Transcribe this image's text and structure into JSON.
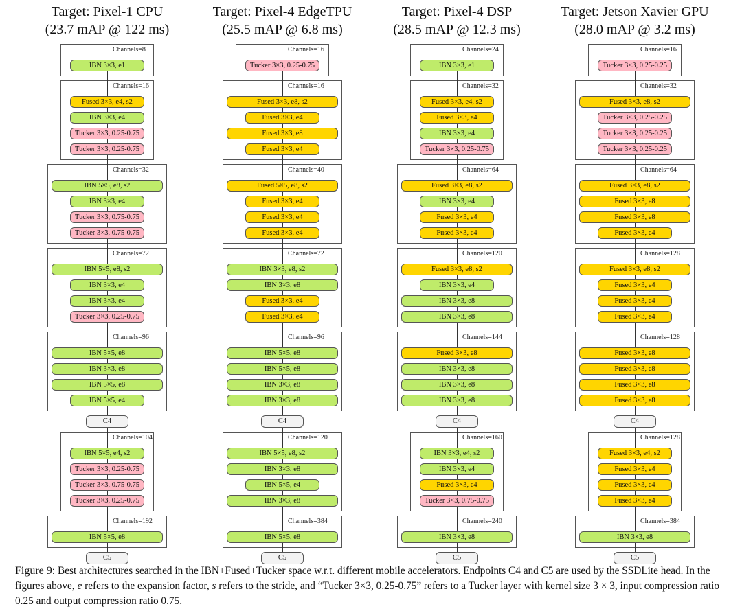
{
  "columns": [
    {
      "title": "Target: Pixel-1 CPU",
      "subtitle": "(23.7 mAP @ 122 ms)",
      "stages": [
        {
          "channels": "Channels=8",
          "blocks": [
            "IBN 3×3, e1"
          ]
        },
        {
          "channels": "Channels=16",
          "blocks": [
            "Fused 3×3, e4, s2",
            "IBN 3×3, e4",
            "Tucker 3×3, 0.25-0.75",
            "Tucker 3×3, 0.25-0.75"
          ]
        },
        {
          "channels": "Channels=32",
          "blocks": [
            "IBN 5×5, e8, s2",
            "IBN 3×3, e4",
            "Tucker 3×3, 0.75-0.75",
            "Tucker 3×3, 0.75-0.75"
          ]
        },
        {
          "channels": "Channels=72",
          "blocks": [
            "IBN 5×5, e8, s2",
            "IBN 3×3, e4",
            "IBN 3×3, e4",
            "Tucker 3×3, 0.25-0.75"
          ]
        },
        {
          "channels": "Channels=96",
          "blocks": [
            "IBN 5×5, e8",
            "IBN 3×3, e8",
            "IBN 5×5, e8",
            "IBN 5×5, e4"
          ]
        },
        {
          "endpoint": "C4"
        },
        {
          "channels": "Channels=104",
          "blocks": [
            "IBN 5×5, e4, s2",
            "Tucker 3×3, 0.25-0.75",
            "Tucker 3×3, 0.75-0.75",
            "Tucker 3×3, 0.25-0.75"
          ]
        },
        {
          "channels": "Channels=192",
          "blocks": [
            "IBN 5×5, e8"
          ]
        },
        {
          "endpoint": "C5"
        }
      ]
    },
    {
      "title": "Target: Pixel-4 EdgeTPU",
      "subtitle": "(25.5 mAP @ 6.8 ms)",
      "stages": [
        {
          "channels": "Channels=16",
          "blocks": [
            "Tucker 3×3, 0.25-0.75"
          ]
        },
        {
          "channels": "Channels=16",
          "blocks": [
            "Fused 3×3, e8, s2",
            "Fused 3×3, e4",
            "Fused 3×3, e8",
            "Fused 3×3, e4"
          ]
        },
        {
          "channels": "Channels=40",
          "blocks": [
            "Fused 5×5, e8, s2",
            "Fused 3×3, e4",
            "Fused 3×3, e4",
            "Fused 3×3, e4"
          ]
        },
        {
          "channels": "Channels=72",
          "blocks": [
            "IBN 3×3, e8, s2",
            "IBN 3×3, e8",
            "Fused 3×3, e4",
            "Fused 3×3, e4"
          ]
        },
        {
          "channels": "Channels=96",
          "blocks": [
            "IBN 5×5, e8",
            "IBN 5×5, e8",
            "IBN 3×3, e8",
            "IBN 3×3, e8"
          ]
        },
        {
          "endpoint": "C4"
        },
        {
          "channels": "Channels=120",
          "blocks": [
            "IBN 5×5, e8, s2",
            "IBN 3×3, e8",
            "IBN 5×5, e4",
            "IBN 3×3, e8"
          ]
        },
        {
          "channels": "Channels=384",
          "blocks": [
            "IBN 5×5, e8"
          ]
        },
        {
          "endpoint": "C5"
        }
      ]
    },
    {
      "title": "Target: Pixel-4 DSP",
      "subtitle": "(28.5 mAP @ 12.3 ms)",
      "stages": [
        {
          "channels": "Channels=24",
          "blocks": [
            "IBN 3×3, e1"
          ]
        },
        {
          "channels": "Channels=32",
          "blocks": [
            "Fused 3×3, e4, s2",
            "Fused 3×3, e4",
            "IBN 3×3, e4",
            "Tucker 3×3, 0.25-0.75"
          ]
        },
        {
          "channels": "Channels=64",
          "blocks": [
            "Fused 3×3, e8, s2",
            "IBN 3×3, e4",
            "Fused 3×3, e4",
            "Fused 3×3, e4"
          ]
        },
        {
          "channels": "Channels=120",
          "blocks": [
            "Fused 3×3, e8, s2",
            "IBN 3×3, e4",
            "IBN 3×3, e8",
            "IBN 3×3, e8"
          ]
        },
        {
          "channels": "Channels=144",
          "blocks": [
            "Fused 3×3, e8",
            "IBN 3×3, e8",
            "IBN 3×3, e8",
            "IBN 3×3, e8"
          ]
        },
        {
          "endpoint": "C4"
        },
        {
          "channels": "Channels=160",
          "blocks": [
            "IBN 3×3, e4, s2",
            "IBN 3×3, e4",
            "Fused 3×3, e4",
            "Tucker 3×3, 0.75-0.75"
          ]
        },
        {
          "channels": "Channels=240",
          "blocks": [
            "IBN 3×3, e8"
          ]
        },
        {
          "endpoint": "C5"
        }
      ]
    },
    {
      "title": "Target: Jetson Xavier GPU",
      "subtitle": "(28.0 mAP @ 3.2 ms)",
      "stages": [
        {
          "channels": "Channels=16",
          "blocks": [
            "Tucker 3×3, 0.25-0.25"
          ]
        },
        {
          "channels": "Channels=32",
          "blocks": [
            "Fused 3×3, e8, s2",
            "Tucker 3×3, 0.25-0.25",
            "Tucker 3×3, 0.25-0.25",
            "Tucker 3×3, 0.25-0.25"
          ]
        },
        {
          "channels": "Channels=64",
          "blocks": [
            "Fused 3×3, e8, s2",
            "Fused 3×3, e8",
            "Fused 3×3, e8",
            "Fused 3×3, e4"
          ]
        },
        {
          "channels": "Channels=128",
          "blocks": [
            "Fused 3×3, e8, s2",
            "Fused 3×3, e4",
            "Fused 3×3, e4",
            "Fused 3×3, e4"
          ]
        },
        {
          "channels": "Channels=128",
          "blocks": [
            "Fused 3×3, e8",
            "Fused 3×3, e8",
            "Fused 3×3, e8",
            "Fused 3×3, e8"
          ]
        },
        {
          "endpoint": "C4"
        },
        {
          "channels": "Channels=128",
          "blocks": [
            "Fused 3×3, e4, s2",
            "Fused 3×3, e4",
            "Fused 3×3, e4",
            "Fused 3×3, e4"
          ]
        },
        {
          "channels": "Channels=384",
          "blocks": [
            "IBN 3×3, e8"
          ]
        },
        {
          "endpoint": "C5"
        }
      ]
    }
  ],
  "colors": {
    "IBN": "#bfeb6a",
    "Fused": "#ffd500",
    "Tucker": "#ffb7c3",
    "endpoint": "#f3f3f3"
  },
  "caption": {
    "label": "Figure 9:",
    "t1": " Best architectures searched in the IBN+Fused+Tucker space w.r.t. different mobile accelerators. Endpoints C4 and C5 are used by the SSDLite head. In the figures above, ",
    "e": "e",
    "t2": " refers to the expansion factor, ",
    "s": "s",
    "t3": " refers to the stride, and “Tucker 3×3, 0.25-0.75” refers to a Tucker layer with kernel size 3 × 3, input compression ratio 0.25 and output compression ratio 0.75."
  }
}
